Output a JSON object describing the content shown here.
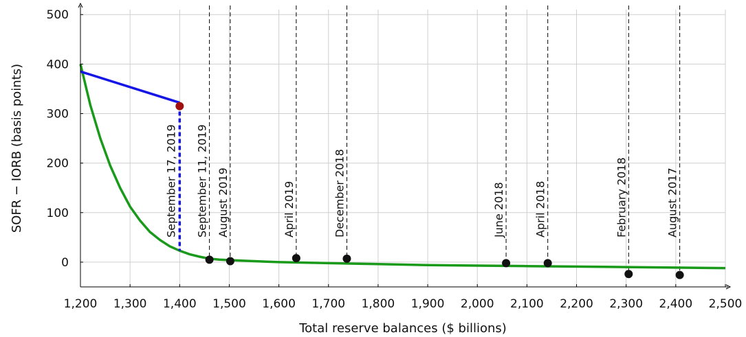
{
  "chart_data": {
    "type": "line",
    "title": "",
    "xlabel": "Total reserve balances ($ billions)",
    "ylabel": "SOFR − IORB (basis points)",
    "xlim": [
      1200,
      2500
    ],
    "ylim": [
      -50,
      510
    ],
    "x_ticks": [
      1200,
      1300,
      1400,
      1500,
      1600,
      1700,
      1800,
      1900,
      2000,
      2100,
      2200,
      2300,
      2400,
      2500
    ],
    "x_tick_labels": [
      "1,200",
      "1,300",
      "1,400",
      "1,500",
      "1,600",
      "1,700",
      "1,800",
      "1,900",
      "2,000",
      "2,100",
      "2,200",
      "2,300",
      "2,400",
      "2,500"
    ],
    "y_ticks": [
      0,
      100,
      200,
      300,
      400,
      500
    ],
    "y_tick_labels": [
      "0",
      "100",
      "200",
      "300",
      "400",
      "500"
    ],
    "grid": true,
    "legend": "none",
    "series": [
      {
        "kind": "curve",
        "color": "#1a9a1a",
        "x": [
          1200,
          1220,
          1240,
          1260,
          1280,
          1300,
          1320,
          1340,
          1360,
          1380,
          1400,
          1420,
          1440,
          1460,
          1480,
          1500,
          1550,
          1600,
          1700,
          1800,
          1900,
          2000,
          2100,
          2200,
          2300,
          2400,
          2500
        ],
        "y": [
          400,
          317,
          250,
          195,
          150,
          112,
          84,
          61,
          45,
          32,
          23,
          16,
          11,
          7,
          5,
          4,
          2,
          0,
          -2,
          -4,
          -6,
          -7,
          -8,
          -9,
          -10,
          -11,
          -12
        ]
      },
      {
        "kind": "segment",
        "color": "#1515e6",
        "x": [
          1200,
          1400
        ],
        "y": [
          385,
          322
        ]
      },
      {
        "kind": "dashed-drop",
        "color": "#1515e6",
        "x": [
          1400,
          1400
        ],
        "y": [
          318,
          23
        ]
      }
    ],
    "highlight_point": {
      "x": 1400,
      "y": 315,
      "color": "#a01010"
    },
    "points": [
      {
        "label": "September 11, 2019",
        "x": 1460,
        "y": 5
      },
      {
        "label": "August 2019",
        "x": 1502,
        "y": 2
      },
      {
        "label": "April 2019",
        "x": 1635,
        "y": 8
      },
      {
        "label": "December 2018",
        "x": 1737,
        "y": 7
      },
      {
        "label": "June 2018",
        "x": 2058,
        "y": -2
      },
      {
        "label": "April 2018",
        "x": 2142,
        "y": -2
      },
      {
        "label": "February 2018",
        "x": 2305,
        "y": -24
      },
      {
        "label": "August 2017",
        "x": 2408,
        "y": -26
      }
    ],
    "annotation_highlight": "September 17, 2019"
  }
}
